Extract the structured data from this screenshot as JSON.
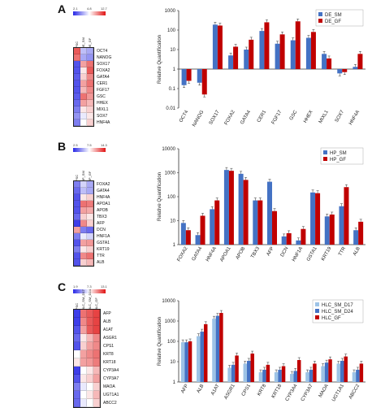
{
  "panels": [
    {
      "letter": "A",
      "heatmap": {
        "scale_ticks": [
          "2.1",
          "4.8",
          "12.7"
        ],
        "columns": [
          "iPSC",
          "DE_SM",
          "DE_GF"
        ],
        "genes": [
          "OCT4",
          "NANOG",
          "SOX17",
          "FOXA2",
          "GATA4",
          "CER1",
          "FGF17",
          "GSC",
          "HHEX",
          "MIXL1",
          "SOX7",
          "HNF4A"
        ],
        "levels": [
          [
            0.85,
            0.35,
            0.3
          ],
          [
            0.8,
            0.3,
            0.25
          ],
          [
            0.1,
            0.7,
            0.8
          ],
          [
            0.1,
            0.55,
            0.85
          ],
          [
            0.12,
            0.6,
            0.75
          ],
          [
            0.1,
            0.7,
            0.8
          ],
          [
            0.1,
            0.65,
            0.75
          ],
          [
            0.12,
            0.8,
            0.72
          ],
          [
            0.15,
            0.7,
            0.65
          ],
          [
            0.2,
            0.55,
            0.6
          ],
          [
            0.25,
            0.45,
            0.55
          ],
          [
            0.2,
            0.5,
            0.6
          ]
        ]
      }
    },
    {
      "letter": "B",
      "heatmap": {
        "scale_ticks": [
          "2.5",
          "7.5",
          "14.3"
        ],
        "columns": [
          "iPSC",
          "HP_SM",
          "HP_GF"
        ],
        "genes": [
          "FOXA2",
          "GATA4",
          "HNF4A",
          "APOA1",
          "APOB",
          "TBX3",
          "AFP",
          "DCN",
          "HNF1A",
          "GSTA1",
          "KRT19",
          "TTR",
          "ALB"
        ],
        "levels": [
          [
            0.2,
            0.4,
            0.3
          ],
          [
            0.15,
            0.35,
            0.3
          ],
          [
            0.1,
            0.55,
            0.6
          ],
          [
            0.1,
            0.8,
            0.78
          ],
          [
            0.1,
            0.7,
            0.68
          ],
          [
            0.15,
            0.6,
            0.55
          ],
          [
            0.05,
            0.75,
            0.6
          ],
          [
            0.7,
            0.2,
            0.15
          ],
          [
            0.2,
            0.45,
            0.4
          ],
          [
            0.1,
            0.7,
            0.72
          ],
          [
            0.2,
            0.55,
            0.6
          ],
          [
            0.1,
            0.75,
            0.8
          ],
          [
            0.1,
            0.6,
            0.65
          ]
        ]
      }
    },
    {
      "letter": "C",
      "heatmap": {
        "scale_ticks": [
          "1.9",
          "7.3",
          "13.1"
        ],
        "columns": [
          "iPSC",
          "HLC_SM_D17",
          "HLC_SM_D24",
          "HLC_GF"
        ],
        "genes": [
          "AFP",
          "ALB",
          "A1AT",
          "ASGR1",
          "CPS1",
          "KRT8",
          "KRT18",
          "CYP3A4",
          "CYP3A7",
          "MAOA",
          "UGT1A1",
          "ABCC2"
        ],
        "levels": [
          [
            0.05,
            0.8,
            0.85,
            0.9
          ],
          [
            0.05,
            0.75,
            0.85,
            0.9
          ],
          [
            0.1,
            0.7,
            0.85,
            0.9
          ],
          [
            0.15,
            0.55,
            0.65,
            0.75
          ],
          [
            0.1,
            0.6,
            0.7,
            0.75
          ],
          [
            0.5,
            0.7,
            0.75,
            0.8
          ],
          [
            0.55,
            0.7,
            0.72,
            0.78
          ],
          [
            0.05,
            0.5,
            0.55,
            0.65
          ],
          [
            0.1,
            0.55,
            0.6,
            0.7
          ],
          [
            0.2,
            0.45,
            0.5,
            0.6
          ],
          [
            0.15,
            0.5,
            0.55,
            0.65
          ],
          [
            0.15,
            0.45,
            0.5,
            0.6
          ]
        ]
      }
    }
  ],
  "chart_data": [
    {
      "type": "bar",
      "ylabel": "Relative Quantification",
      "yscale": "log",
      "ylim": [
        0.01,
        1000
      ],
      "yticks": [
        "0.01",
        "0.1",
        "1",
        "10",
        "100",
        "1000"
      ],
      "legend_position": "top-right",
      "categories": [
        "OCT4",
        "NANOG",
        "SOX17",
        "FOXA2",
        "GATA4",
        "CER1",
        "FGF17",
        "GSC",
        "HHEX",
        "MIXL1",
        "SOX7",
        "HNF4A"
      ],
      "series": [
        {
          "name": "DE_SM",
          "color": "#4472c4",
          "values": [
            0.15,
            0.2,
            190,
            5,
            10,
            90,
            20,
            30,
            40,
            6,
            0.6,
            1.3
          ]
        },
        {
          "name": "DE_GF",
          "color": "#c00000",
          "values": [
            0.25,
            0.05,
            170,
            14,
            32,
            250,
            60,
            280,
            80,
            3.5,
            0.7,
            6
          ]
        }
      ]
    },
    {
      "type": "bar",
      "ylabel": "Relative Quantification",
      "yscale": "log",
      "ylim": [
        1,
        10000
      ],
      "yticks": [
        "1",
        "10",
        "100",
        "1000",
        "10000"
      ],
      "legend_position": "top-right",
      "categories": [
        "FOXA2",
        "GATA4",
        "HNF4A",
        "APOA1",
        "APOB",
        "TBX3",
        "AFP",
        "DCN",
        "HNF1A",
        "GSTA1",
        "KRT19",
        "TTR",
        "ALB"
      ],
      "series": [
        {
          "name": "HP_SM",
          "color": "#4472c4",
          "values": [
            8,
            2.5,
            30,
            1300,
            900,
            70,
            420,
            2.2,
            1.5,
            150,
            15,
            40,
            4
          ]
        },
        {
          "name": "HP_GF",
          "color": "#c00000",
          "values": [
            4,
            16,
            70,
            1200,
            500,
            70,
            25,
            3,
            4.5,
            140,
            18,
            250,
            9
          ]
        }
      ]
    },
    {
      "type": "bar",
      "yscale": "log",
      "ylim": [
        1,
        10000
      ],
      "yticks": [
        "1",
        "10",
        "100",
        "1000",
        "10000"
      ],
      "ylabel": "Relative Quantification",
      "legend_position": "top-right",
      "categories": [
        "AFP",
        "ALB",
        "A1AT",
        "ASGR1",
        "CPS1",
        "KRT8",
        "KRT18",
        "CYP3A4",
        "CYP3A7",
        "MAOA",
        "UGT1A1",
        "ABCC2"
      ],
      "series": [
        {
          "name": "HLC_SM_D17",
          "color": "#9dc3e6",
          "values": [
            90,
            180,
            1300,
            5,
            8,
            3,
            3,
            2.5,
            3,
            6,
            8,
            3
          ]
        },
        {
          "name": "HLC_SM_D24",
          "color": "#4472c4",
          "values": [
            90,
            300,
            1800,
            7,
            11,
            4,
            4,
            3.5,
            4,
            9,
            11,
            4
          ]
        },
        {
          "name": "HLC_GF",
          "color": "#c00000",
          "values": [
            100,
            700,
            2500,
            20,
            25,
            7,
            6,
            12,
            8,
            13,
            18,
            8
          ]
        }
      ]
    }
  ]
}
